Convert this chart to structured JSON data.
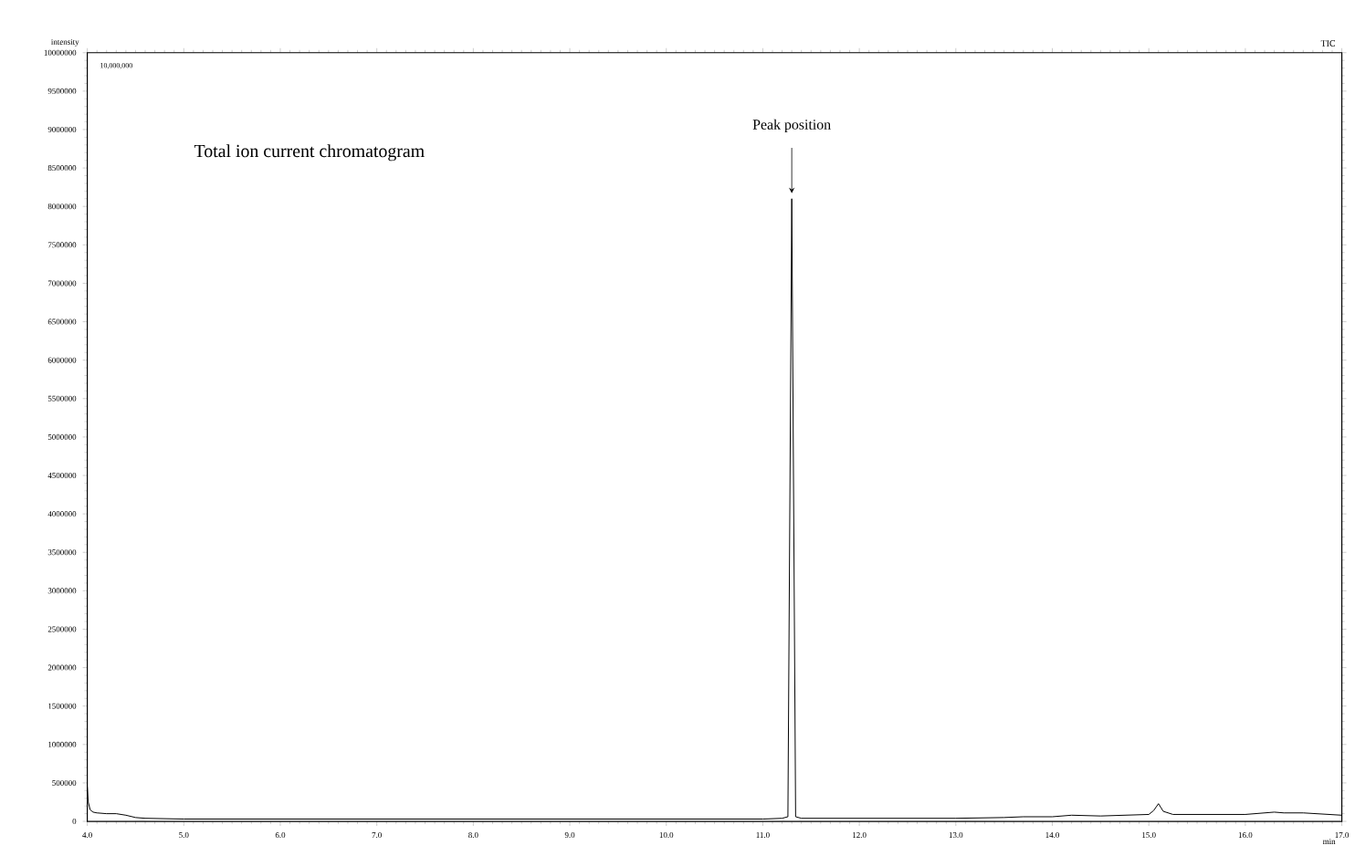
{
  "chart_data": {
    "type": "line",
    "xlabel": "min",
    "ylabel": "intensity",
    "annotations": [
      "Total ion current chromatogram",
      {
        "text": "Peak position",
        "x": 11.3,
        "y": 8100000
      },
      "10,000,000",
      "TIC"
    ],
    "series": [
      {
        "color": "#000000",
        "x": [
          4.0,
          4.01,
          4.03,
          4.06,
          4.1,
          4.2,
          4.3,
          4.4,
          4.5,
          4.6,
          5.0,
          6.0,
          7.0,
          8.0,
          9.0,
          10.0,
          11.0,
          11.2,
          11.26,
          11.3,
          11.34,
          11.4,
          12.0,
          13.0,
          13.5,
          13.7,
          14.0,
          14.2,
          14.5,
          15.0,
          15.05,
          15.1,
          15.15,
          15.25,
          15.5,
          15.8,
          16.0,
          16.3,
          16.4,
          16.6,
          17.0
        ],
        "values": [
          450000,
          250000,
          150000,
          120000,
          110000,
          100000,
          100000,
          80000,
          50000,
          40000,
          30000,
          30000,
          30000,
          30000,
          30000,
          30000,
          30000,
          40000,
          60000,
          8100000,
          60000,
          40000,
          40000,
          40000,
          50000,
          60000,
          60000,
          80000,
          70000,
          90000,
          140000,
          230000,
          130000,
          90000,
          90000,
          90000,
          90000,
          120000,
          110000,
          110000,
          80000
        ]
      }
    ],
    "xlim": [
      4.0,
      17.0
    ],
    "xticks": [
      {
        "value": 4,
        "label": "4.0"
      },
      {
        "value": 5,
        "label": "5.0"
      },
      {
        "value": 6,
        "label": "6.0"
      },
      {
        "value": 7,
        "label": "7.0"
      },
      {
        "value": 8,
        "label": "8.0"
      },
      {
        "value": 9,
        "label": "9.0"
      },
      {
        "value": 10,
        "label": "10.0"
      },
      {
        "value": 11,
        "label": "11.0"
      },
      {
        "value": 12,
        "label": "12.0"
      },
      {
        "value": 13,
        "label": "13.0"
      },
      {
        "value": 14,
        "label": "14.0"
      },
      {
        "value": 15,
        "label": "15.0"
      },
      {
        "value": 16,
        "label": "16.0"
      },
      {
        "value": 17,
        "label": "17.0"
      }
    ],
    "ylim": [
      0,
      10000000
    ],
    "yticks": [
      0,
      500000,
      1000000,
      1500000,
      2000000,
      2500000,
      3000000,
      3500000,
      4000000,
      4500000,
      5000000,
      5500000,
      6000000,
      6500000,
      7000000,
      7500000,
      8000000,
      8500000,
      9000000,
      9500000,
      10000000
    ],
    "grid": false,
    "marker": "none",
    "line_style": "solid"
  }
}
